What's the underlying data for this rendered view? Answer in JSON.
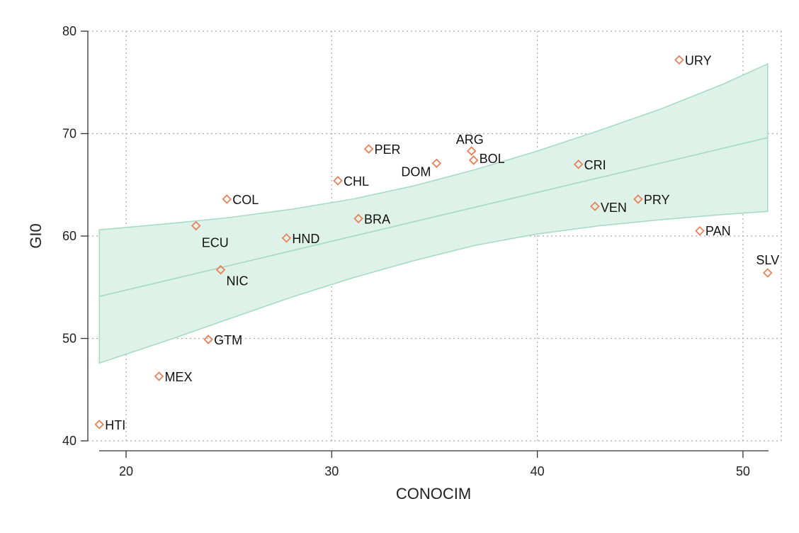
{
  "chart_data": {
    "type": "scatter",
    "title": "",
    "xlabel": "CONOCIM",
    "ylabel": "GI0",
    "xlim": [
      18.5,
      51.8
    ],
    "ylim": [
      40,
      80
    ],
    "xticks": [
      20,
      30,
      40,
      50
    ],
    "yticks": [
      40,
      50,
      60,
      70,
      80
    ],
    "grid": true,
    "colors": {
      "marker": "#e8825a",
      "band_fill": "#dff2e9",
      "band_line": "#a7dcc3",
      "fit_line": "#a7dcc3"
    },
    "points": [
      {
        "label": "URY",
        "x": 46.9,
        "y": 77.2
      },
      {
        "label": "ARG",
        "x": 36.8,
        "y": 68.3
      },
      {
        "label": "BOL",
        "x": 36.9,
        "y": 67.4
      },
      {
        "label": "PER",
        "x": 31.8,
        "y": 68.5
      },
      {
        "label": "DOM",
        "x": 35.1,
        "y": 67.1
      },
      {
        "label": "CRI",
        "x": 42.0,
        "y": 67.0
      },
      {
        "label": "CHL",
        "x": 30.3,
        "y": 65.4
      },
      {
        "label": "COL",
        "x": 24.9,
        "y": 63.6
      },
      {
        "label": "PRY",
        "x": 44.9,
        "y": 63.6
      },
      {
        "label": "VEN",
        "x": 42.8,
        "y": 62.9
      },
      {
        "label": "BRA",
        "x": 31.3,
        "y": 61.7
      },
      {
        "label": "ECU",
        "x": 23.4,
        "y": 61.0
      },
      {
        "label": "HND",
        "x": 27.8,
        "y": 59.8
      },
      {
        "label": "PAN",
        "x": 47.9,
        "y": 60.5
      },
      {
        "label": "NIC",
        "x": 24.6,
        "y": 56.7
      },
      {
        "label": "SLV",
        "x": 51.2,
        "y": 56.4
      },
      {
        "label": "GTM",
        "x": 24.0,
        "y": 49.9
      },
      {
        "label": "MEX",
        "x": 21.6,
        "y": 46.3
      },
      {
        "label": "HTI",
        "x": 18.7,
        "y": 41.6
      }
    ],
    "fit": {
      "x": [
        18.7,
        51.2
      ],
      "y": [
        54.1,
        69.6
      ]
    },
    "confidence_band": {
      "x": [
        18.7,
        22.0,
        25.0,
        28.0,
        31.0,
        34.0,
        37.0,
        40.0,
        43.0,
        46.0,
        49.0,
        51.2
      ],
      "upper": [
        60.6,
        61.2,
        61.8,
        62.6,
        63.6,
        64.9,
        66.5,
        68.3,
        70.3,
        72.4,
        74.8,
        76.8
      ],
      "lower": [
        47.6,
        49.8,
        51.9,
        54.0,
        55.9,
        57.6,
        59.1,
        60.2,
        61.0,
        61.6,
        62.1,
        62.4
      ]
    }
  }
}
